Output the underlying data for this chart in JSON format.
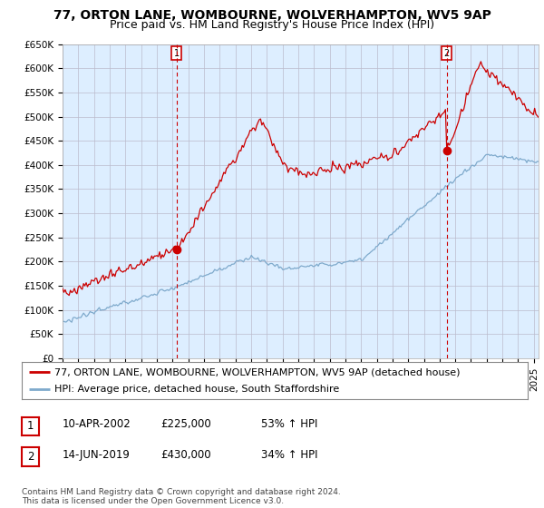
{
  "title": "77, ORTON LANE, WOMBOURNE, WOLVERHAMPTON, WV5 9AP",
  "subtitle": "Price paid vs. HM Land Registry's House Price Index (HPI)",
  "ylim": [
    0,
    650000
  ],
  "xlim_start": 1995.0,
  "xlim_end": 2025.3,
  "sale1_x": 2002.27,
  "sale1_y": 225000,
  "sale1_label": "1",
  "sale2_x": 2019.45,
  "sale2_y": 430000,
  "sale2_label": "2",
  "red_line_color": "#cc0000",
  "blue_line_color": "#7faacc",
  "chart_bg_color": "#ddeeff",
  "grid_color": "#bbbbcc",
  "background_color": "#ffffff",
  "legend_line1": "77, ORTON LANE, WOMBOURNE, WOLVERHAMPTON, WV5 9AP (detached house)",
  "legend_line2": "HPI: Average price, detached house, South Staffordshire",
  "table_row1": [
    "1",
    "10-APR-2002",
    "£225,000",
    "53% ↑ HPI"
  ],
  "table_row2": [
    "2",
    "14-JUN-2019",
    "£430,000",
    "34% ↑ HPI"
  ],
  "footer": "Contains HM Land Registry data © Crown copyright and database right 2024.\nThis data is licensed under the Open Government Licence v3.0.",
  "title_fontsize": 10,
  "subtitle_fontsize": 9,
  "axis_fontsize": 7.5,
  "legend_fontsize": 8,
  "table_fontsize": 8.5,
  "footer_fontsize": 6.5
}
